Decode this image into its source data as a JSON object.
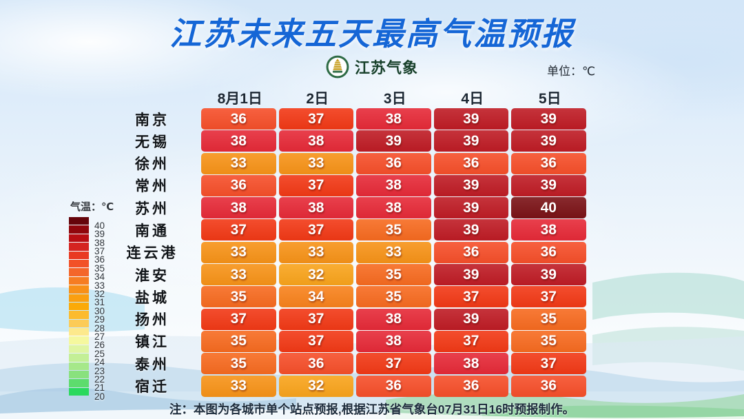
{
  "title": "江苏未来五天最高气温预报",
  "logo": {
    "icon": "jiangsu-weather-pagoda-emblem",
    "text": "江苏气象"
  },
  "unit_label": "单位：℃",
  "table": {
    "columns": [
      "8月1日",
      "2日",
      "3日",
      "4日",
      "5日"
    ],
    "rows": [
      {
        "city": "南京",
        "temps": [
          36,
          37,
          38,
          39,
          39
        ]
      },
      {
        "city": "无锡",
        "temps": [
          38,
          38,
          39,
          39,
          39
        ]
      },
      {
        "city": "徐州",
        "temps": [
          33,
          33,
          36,
          36,
          36
        ]
      },
      {
        "city": "常州",
        "temps": [
          36,
          37,
          38,
          39,
          39
        ]
      },
      {
        "city": "苏州",
        "temps": [
          38,
          38,
          38,
          39,
          40
        ]
      },
      {
        "city": "南通",
        "temps": [
          37,
          37,
          35,
          39,
          38
        ]
      },
      {
        "city": "连云港",
        "temps": [
          33,
          33,
          33,
          36,
          36
        ]
      },
      {
        "city": "淮安",
        "temps": [
          33,
          32,
          35,
          39,
          39
        ]
      },
      {
        "city": "盐城",
        "temps": [
          35,
          34,
          35,
          37,
          37
        ]
      },
      {
        "city": "扬州",
        "temps": [
          37,
          37,
          38,
          39,
          35
        ]
      },
      {
        "city": "镇江",
        "temps": [
          35,
          37,
          38,
          37,
          35
        ]
      },
      {
        "city": "泰州",
        "temps": [
          35,
          36,
          37,
          38,
          37
        ]
      },
      {
        "city": "宿迁",
        "temps": [
          33,
          32,
          36,
          36,
          36
        ]
      }
    ]
  },
  "temp_colors": {
    "32": "#f9a41c",
    "33": "#f79318",
    "34": "#f8821c",
    "35": "#f76b20",
    "36": "#f64f2a",
    "37": "#f23916",
    "38": "#e62a38",
    "39": "#bf1c25",
    "40": "#7b1216"
  },
  "legend": {
    "title": "气温：℃",
    "bands": [
      {
        "label": "40",
        "color": "#65040a"
      },
      {
        "label": "39",
        "color": "#90060c"
      },
      {
        "label": "38",
        "color": "#b80e13"
      },
      {
        "label": "37",
        "color": "#d52420"
      },
      {
        "label": "36",
        "color": "#e93a22"
      },
      {
        "label": "35",
        "color": "#f25127"
      },
      {
        "label": "34",
        "color": "#f4662a"
      },
      {
        "label": "33",
        "color": "#f67d22"
      },
      {
        "label": "32",
        "color": "#f89018"
      },
      {
        "label": "31",
        "color": "#fa9f10"
      },
      {
        "label": "30",
        "color": "#fbaa08"
      },
      {
        "label": "29",
        "color": "#fcbb2d"
      },
      {
        "label": "28",
        "color": "#fccb57"
      },
      {
        "label": "27",
        "color": "#fde98c"
      },
      {
        "label": "26",
        "color": "#f5f89e"
      },
      {
        "label": "25",
        "color": "#dff5a2"
      },
      {
        "label": "24",
        "color": "#c3ef96"
      },
      {
        "label": "23",
        "color": "#a6e88a"
      },
      {
        "label": "22",
        "color": "#89e17e"
      },
      {
        "label": "21",
        "color": "#5ddc6d"
      },
      {
        "label": "20",
        "color": "#2bd95e"
      }
    ]
  },
  "footnote": "注：本图为各城市单个站点预报,根据江苏省气象台07月31日16时预报制作。",
  "colors": {
    "title_blue": "#1566d6"
  },
  "chart_data": {
    "type": "heatmap",
    "title": "江苏未来五天最高气温预报",
    "unit": "℃",
    "x_labels": [
      "8月1日",
      "2日",
      "3日",
      "4日",
      "5日"
    ],
    "y_labels": [
      "南京",
      "无锡",
      "徐州",
      "常州",
      "苏州",
      "南通",
      "连云港",
      "淮安",
      "盐城",
      "扬州",
      "镇江",
      "泰州",
      "宿迁"
    ],
    "values": [
      [
        36,
        37,
        38,
        39,
        39
      ],
      [
        38,
        38,
        39,
        39,
        39
      ],
      [
        33,
        33,
        36,
        36,
        36
      ],
      [
        36,
        37,
        38,
        39,
        39
      ],
      [
        38,
        38,
        38,
        39,
        40
      ],
      [
        37,
        37,
        35,
        39,
        38
      ],
      [
        33,
        33,
        33,
        36,
        36
      ],
      [
        33,
        32,
        35,
        39,
        39
      ],
      [
        35,
        34,
        35,
        37,
        37
      ],
      [
        37,
        37,
        38,
        39,
        35
      ],
      [
        35,
        37,
        38,
        37,
        35
      ],
      [
        35,
        36,
        37,
        38,
        37
      ],
      [
        33,
        32,
        36,
        36,
        36
      ]
    ],
    "colorbar": {
      "title": "气温：℃",
      "min": 20,
      "max": 40,
      "position": "left"
    },
    "legend_position": "left",
    "annotations": [
      "单位：℃",
      "注：本图为各城市单个站点预报,根据江苏省气象台07月31日16时预报制作。"
    ]
  }
}
